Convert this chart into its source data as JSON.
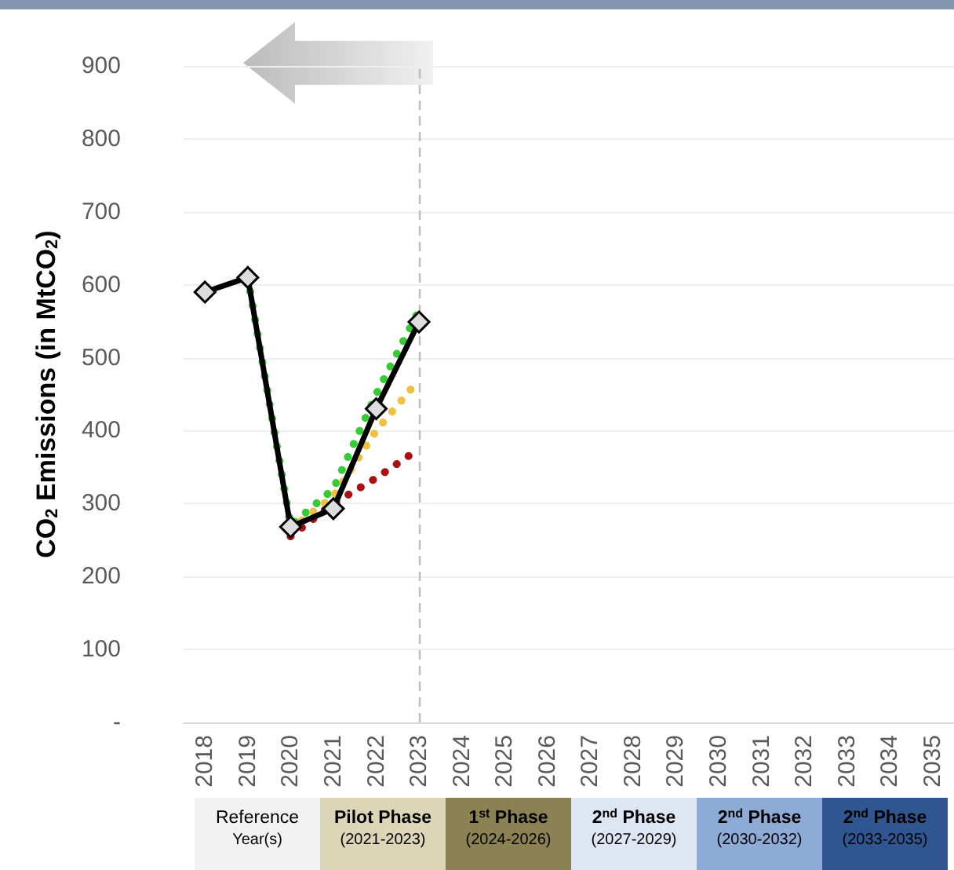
{
  "chart_data": {
    "type": "line",
    "ylabel": "CO$_{2}$ Emissions (in MtCO$_{2}$)",
    "categories": [
      "2018",
      "2019",
      "2020",
      "2021",
      "2022",
      "2023",
      "2024",
      "2025",
      "2026",
      "2027",
      "2028",
      "2029",
      "2030",
      "2031",
      "2032",
      "2033",
      "2034",
      "2035"
    ],
    "series": [
      {
        "color": "#33cc33",
        "marker": "none",
        "line_style": "dotted",
        "values": [
          null,
          610,
          270,
          320,
          450,
          565,
          null,
          null,
          null,
          null,
          null,
          null,
          null,
          null,
          null,
          null,
          null,
          null
        ]
      },
      {
        "color": "#f0c040",
        "marker": "none",
        "line_style": "dotted",
        "values": [
          null,
          null,
          265,
          310,
          400,
          470,
          null,
          null,
          null,
          null,
          null,
          null,
          null,
          null,
          null,
          null,
          null,
          null
        ]
      },
      {
        "color": "#aa1111",
        "marker": "none",
        "line_style": "dotted",
        "values": [
          null,
          null,
          255,
          300,
          335,
          375,
          null,
          null,
          null,
          null,
          null,
          null,
          null,
          null,
          null,
          null,
          null,
          null
        ]
      },
      {
        "color": "#000000",
        "marker": "diamond",
        "line_style": "solid",
        "values": [
          590,
          610,
          268,
          293,
          430,
          549,
          null,
          null,
          null,
          null,
          null,
          null,
          null,
          null,
          null,
          null,
          null,
          null
        ]
      }
    ],
    "ylim": [
      0,
      900
    ],
    "yticks": [
      {
        "value": 0,
        "label": "-"
      },
      100,
      200,
      300,
      400,
      500,
      600,
      700,
      800,
      900
    ],
    "grid": "y",
    "ref_lines": [
      {
        "axis": "x",
        "value": "2023",
        "color": "#bbbbbb",
        "line_style": "dashed"
      }
    ],
    "annotations": [
      "Reference Year(s)",
      "Pilot Phase (2021-2023)",
      "1$^{st}$ Phase (2024-2026)",
      "2$^{nd}$ Phase (2027-2029)",
      "2$^{nd}$ Phase (2030-2032)",
      "2$^{nd}$ Phase (2033-2035)"
    ]
  }
}
